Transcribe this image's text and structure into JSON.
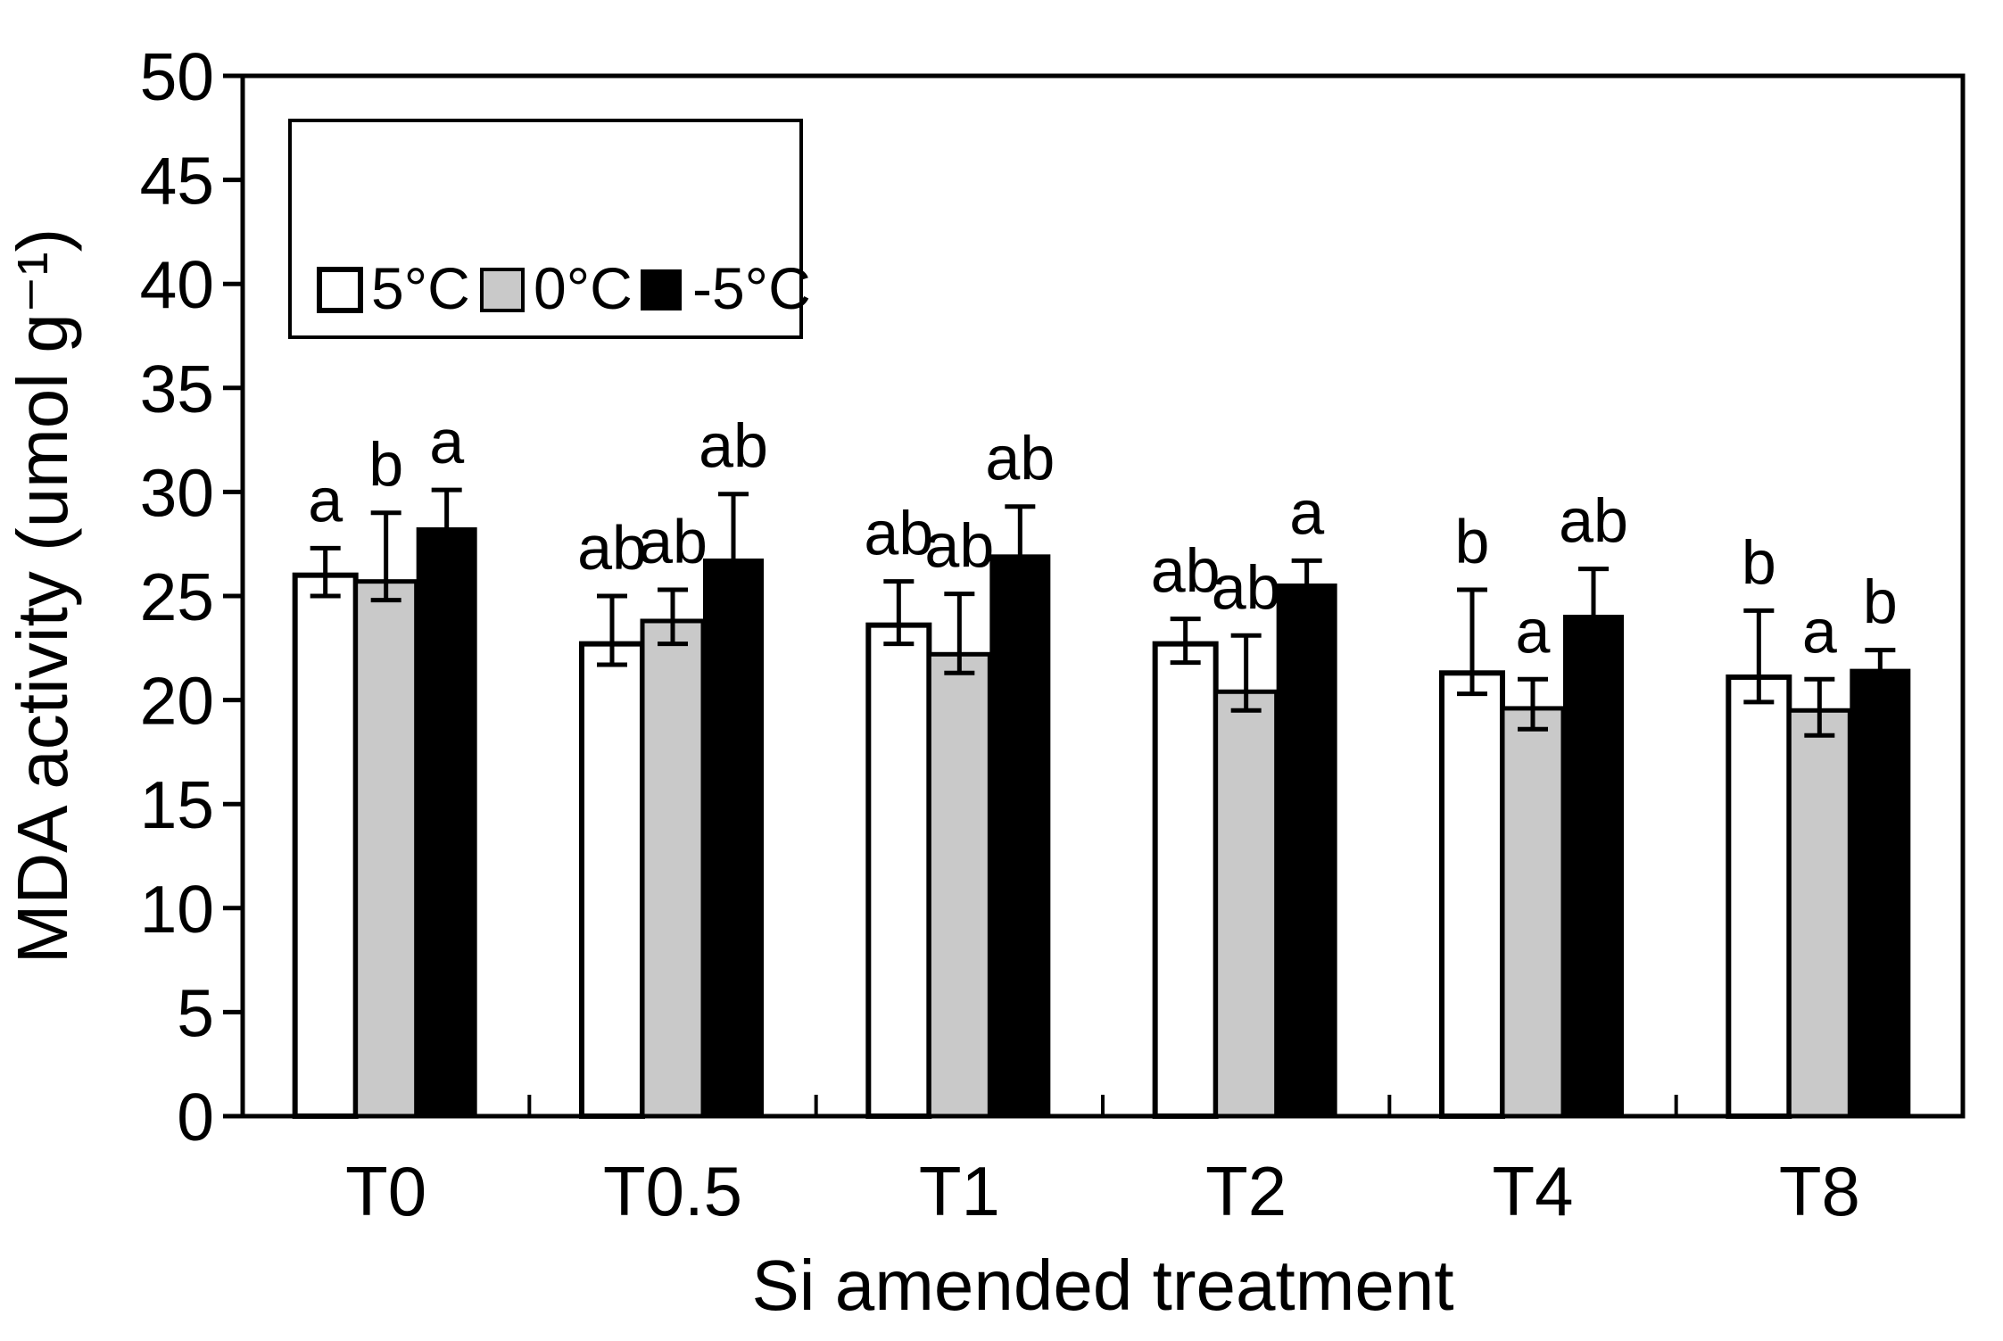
{
  "figure": {
    "background": "#ffffff",
    "ink_color": "#000000"
  },
  "chart_data": {
    "type": "bar",
    "title": "",
    "xlabel": "Si amended treatment",
    "ylabel": "MDA activity (umol g⁻¹)",
    "ylim": [
      0,
      50
    ],
    "ytick_step": 5,
    "grid": "off",
    "legend_position": "top-left-inside",
    "categories": [
      "T0",
      "T0.5",
      "T1",
      "T2",
      "T4",
      "T8"
    ],
    "series": [
      {
        "name": "5°C",
        "fill": "#ffffff",
        "stroke": "#000000",
        "values": [
          26.0,
          22.7,
          23.6,
          22.7,
          21.3,
          21.1
        ],
        "err_up": [
          1.3,
          2.3,
          2.1,
          1.2,
          4.0,
          3.2
        ],
        "err_down": [
          1.0,
          1.0,
          0.9,
          0.9,
          1.0,
          1.2
        ],
        "letters": [
          "a",
          "ab",
          "ab",
          "ab",
          "b",
          "b"
        ]
      },
      {
        "name": "0°C",
        "fill": "#c9c9c9",
        "stroke": "#000000",
        "values": [
          25.7,
          23.8,
          22.2,
          20.4,
          19.6,
          19.5
        ],
        "err_up": [
          3.3,
          1.5,
          2.9,
          2.7,
          1.4,
          1.5
        ],
        "err_down": [
          0.9,
          1.1,
          0.9,
          0.9,
          1.0,
          1.2
        ],
        "letters": [
          "b",
          "ab",
          "ab",
          "ab",
          "a",
          "a"
        ]
      },
      {
        "name": "-5°C",
        "fill": "#000000",
        "stroke": "#000000",
        "values": [
          28.3,
          26.8,
          27.0,
          25.6,
          24.1,
          21.5
        ],
        "err_up": [
          1.8,
          3.1,
          2.3,
          1.1,
          2.2,
          0.9
        ],
        "err_down": [
          1.8,
          3.1,
          2.3,
          1.1,
          2.2,
          0.9
        ],
        "letters": [
          "a",
          "ab",
          "ab",
          "a",
          "ab",
          "b"
        ]
      }
    ]
  }
}
